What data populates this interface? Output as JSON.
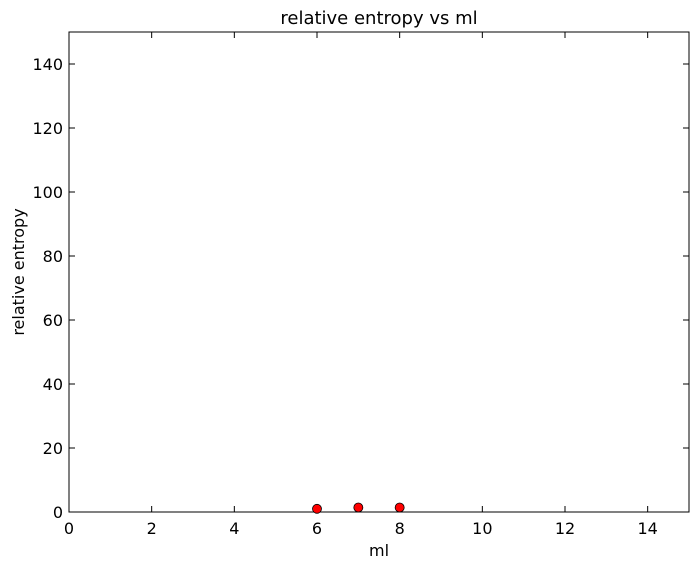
{
  "chart_data": {
    "type": "scatter",
    "title": "relative entropy vs ml",
    "xlabel": "ml",
    "ylabel": "relative entropy",
    "xlim": [
      0,
      15
    ],
    "ylim": [
      0,
      150
    ],
    "xticks": [
      0,
      2,
      4,
      6,
      8,
      10,
      12,
      14
    ],
    "yticks": [
      0,
      20,
      40,
      60,
      80,
      100,
      120,
      140
    ],
    "grid": false,
    "series": [
      {
        "x": [
          6,
          7,
          8
        ],
        "y": [
          1.0,
          1.4,
          1.4
        ],
        "color": "#ff0000",
        "edge_color": "#000000",
        "marker": "circle"
      }
    ]
  }
}
